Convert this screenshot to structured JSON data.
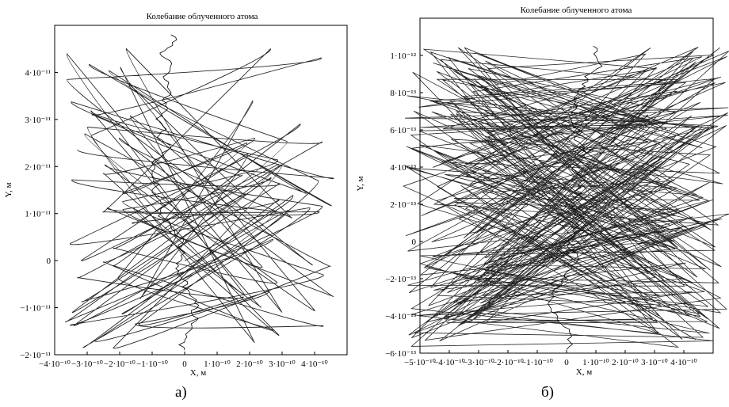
{
  "chart_data": [
    {
      "type": "line",
      "panel_label": "а)",
      "title": "Колебание облученного атома",
      "xlabel": "X, м",
      "ylabel": "Y, м",
      "xlim": [
        -4e-10,
        5e-10
      ],
      "ylim": [
        -2e-11,
        5e-11
      ],
      "x_ticks": [
        {
          "value": -4e-10,
          "label": "−4·10⁻¹⁰"
        },
        {
          "value": -3e-10,
          "label": "−3·10⁻¹⁰"
        },
        {
          "value": -2e-10,
          "label": "−2·10⁻¹⁰"
        },
        {
          "value": -1e-10,
          "label": "−1·10⁻¹⁰"
        },
        {
          "value": 0,
          "label": "0"
        },
        {
          "value": 1e-10,
          "label": "1·10⁻¹⁰"
        },
        {
          "value": 2e-10,
          "label": "2·10⁻¹⁰"
        },
        {
          "value": 3e-10,
          "label": "3·10⁻¹⁰"
        },
        {
          "value": 4e-10,
          "label": "4·10⁻¹⁰"
        }
      ],
      "y_ticks": [
        {
          "value": -2e-11,
          "label": "−2·10⁻¹¹"
        },
        {
          "value": -1e-11,
          "label": "−1·10⁻¹¹"
        },
        {
          "value": 0,
          "label": "0"
        },
        {
          "value": 1e-11,
          "label": "1·10⁻¹¹"
        },
        {
          "value": 2e-11,
          "label": "2·10⁻¹¹"
        },
        {
          "value": 3e-11,
          "label": "3·10⁻¹¹"
        },
        {
          "value": 4e-11,
          "label": "4·10⁻¹¹"
        }
      ],
      "series": [
        {
          "x": [
            0,
            -2.8e-10,
            4e-10,
            -3.8e-10,
            3e-10,
            -2.5e-10,
            4.8e-10,
            -4.2e-10,
            2e-10,
            -3e-10,
            4.5e-10,
            -1.8e-10,
            3.6e-10,
            -3.5e-10,
            2.6e-10,
            -2.2e-10,
            4.2e-10,
            -3.9e-10,
            1.5e-10,
            -2.7e-10
          ],
          "y": [
            0,
            3e-12,
            8e-12,
            1.3e-11,
            1.8e-11,
            2.3e-11,
            2.7e-11,
            3.1e-11,
            3.5e-11,
            3.9e-11,
            4.3e-11,
            4.7e-11,
            4.1e-11,
            3.3e-11,
            2.1e-11,
            1.2e-11,
            4e-12,
            -6e-12,
            -1.2e-11,
            -1.8e-11
          ]
        }
      ],
      "grid": false,
      "line_color": "#000000"
    },
    {
      "type": "line",
      "panel_label": "б)",
      "title": "Колебание облученного атома",
      "xlabel": "X, м",
      "ylabel": "Y, м",
      "xlim": [
        -5e-10,
        5e-10
      ],
      "ylim": [
        -6e-13,
        1.2e-12
      ],
      "x_ticks": [
        {
          "value": -5e-10,
          "label": "−5·10⁻¹⁰"
        },
        {
          "value": -4e-10,
          "label": "−4·10⁻¹⁰"
        },
        {
          "value": -3e-10,
          "label": "−3·10⁻¹⁰"
        },
        {
          "value": -2e-10,
          "label": "−2·10⁻¹⁰"
        },
        {
          "value": -1e-10,
          "label": "−1·10⁻¹⁰"
        },
        {
          "value": 0,
          "label": "0"
        },
        {
          "value": 1e-10,
          "label": "1·10⁻¹⁰"
        },
        {
          "value": 2e-10,
          "label": "2·10⁻¹⁰"
        },
        {
          "value": 3e-10,
          "label": "3·10⁻¹⁰"
        },
        {
          "value": 4e-10,
          "label": "4·10⁻¹⁰"
        }
      ],
      "y_ticks": [
        {
          "value": -6e-13,
          "label": "−6·10⁻¹³"
        },
        {
          "value": -4e-13,
          "label": "−4·10⁻¹³"
        },
        {
          "value": -2e-13,
          "label": "−2·10⁻¹³"
        },
        {
          "value": 0,
          "label": "0"
        },
        {
          "value": 2e-13,
          "label": "2·10⁻¹³"
        },
        {
          "value": 4e-13,
          "label": "4·10⁻¹³"
        },
        {
          "value": 6e-13,
          "label": "6·10⁻¹³"
        },
        {
          "value": 8e-13,
          "label": "8·10⁻¹³"
        },
        {
          "value": 1e-12,
          "label": "1·10⁻¹²"
        }
      ],
      "series": [
        {
          "x": [
            0,
            -3.2e-10,
            3.4e-10,
            -2.8e-10,
            3.6e-10,
            -4.8e-10,
            4.8e-10,
            -3e-10,
            3.2e-10,
            -3.1e-10,
            3.3e-10,
            -2.9e-10,
            3e-10
          ],
          "y": [
            0,
            -4e-13,
            -5.7e-13,
            -2e-13,
            8e-14,
            8e-14,
            3e-13,
            5e-13,
            7e-13,
            9e-13,
            1.05e-12,
            6e-13,
            2e-13
          ]
        }
      ],
      "grid": false,
      "line_color": "#000000"
    }
  ]
}
